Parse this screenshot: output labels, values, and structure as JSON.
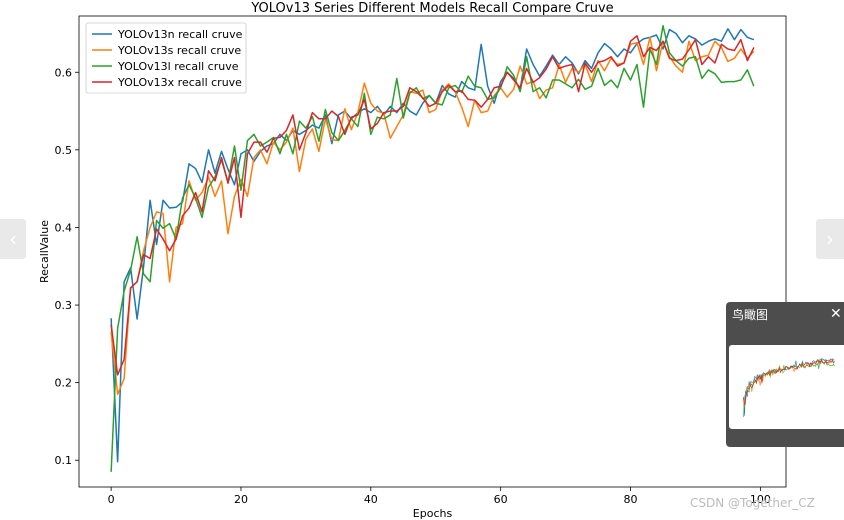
{
  "chart_data": {
    "type": "line",
    "title": "YOLOv13 Series Different Models Recall Compare Cruve",
    "xlabel": "Epochs",
    "ylabel": "RecallValue",
    "xlim": [
      -4.95,
      103.95
    ],
    "ylim": [
      0.0655,
      0.6725
    ],
    "xticks": [
      0,
      20,
      40,
      60,
      80,
      100
    ],
    "yticks": [
      0.1,
      0.2,
      0.3,
      0.4,
      0.5,
      0.6
    ],
    "grid": false,
    "legend": "top-left",
    "series": [
      {
        "name": "YOLOv13n recall cruve",
        "color": "#1f77b4",
        "x_start": 0,
        "values": [
          0.283,
          0.098,
          0.33,
          0.348,
          0.282,
          0.35,
          0.435,
          0.378,
          0.435,
          0.425,
          0.426,
          0.433,
          0.482,
          0.476,
          0.458,
          0.5,
          0.47,
          0.498,
          0.475,
          0.455,
          0.495,
          0.5,
          0.485,
          0.498,
          0.505,
          0.508,
          0.52,
          0.512,
          0.525,
          0.52,
          0.525,
          0.532,
          0.528,
          0.545,
          0.508,
          0.545,
          0.55,
          0.54,
          0.548,
          0.553,
          0.548,
          0.556,
          0.545,
          0.556,
          0.548,
          0.56,
          0.55,
          0.545,
          0.56,
          0.57,
          0.56,
          0.583,
          0.572,
          0.568,
          0.588,
          0.58,
          0.577,
          0.636,
          0.582,
          0.56,
          0.588,
          0.6,
          0.592,
          0.578,
          0.63,
          0.61,
          0.595,
          0.608,
          0.622,
          0.61,
          0.62,
          0.612,
          0.598,
          0.615,
          0.605,
          0.625,
          0.637,
          0.63,
          0.62,
          0.63,
          0.625,
          0.637,
          0.643,
          0.645,
          0.648,
          0.63,
          0.655,
          0.65,
          0.638,
          0.647,
          0.643,
          0.635,
          0.64,
          0.643,
          0.64,
          0.656,
          0.642,
          0.655,
          0.645,
          0.642
        ]
      },
      {
        "name": "YOLOv13s recall cruve",
        "color": "#ff7f0e",
        "x_start": 0,
        "values": [
          0.265,
          0.185,
          0.205,
          0.322,
          0.33,
          0.37,
          0.4,
          0.42,
          0.418,
          0.33,
          0.4,
          0.405,
          0.46,
          0.435,
          0.445,
          0.465,
          0.44,
          0.46,
          0.392,
          0.44,
          0.462,
          0.44,
          0.49,
          0.5,
          0.482,
          0.51,
          0.5,
          0.51,
          0.528,
          0.472,
          0.514,
          0.527,
          0.498,
          0.54,
          0.513,
          0.512,
          0.553,
          0.526,
          0.548,
          0.586,
          0.56,
          0.55,
          0.547,
          0.515,
          0.53,
          0.545,
          0.575,
          0.573,
          0.577,
          0.548,
          0.552,
          0.577,
          0.585,
          0.575,
          0.555,
          0.53,
          0.564,
          0.548,
          0.55,
          0.57,
          0.58,
          0.568,
          0.578,
          0.608,
          0.585,
          0.588,
          0.566,
          0.577,
          0.58,
          0.61,
          0.587,
          0.605,
          0.6,
          0.61,
          0.588,
          0.615,
          0.602,
          0.618,
          0.61,
          0.612,
          0.636,
          0.638,
          0.61,
          0.645,
          0.602,
          0.64,
          0.62,
          0.608,
          0.6,
          0.64,
          0.615,
          0.62,
          0.622,
          0.64,
          0.632,
          0.614,
          0.618,
          0.63,
          0.618,
          0.627
        ]
      },
      {
        "name": "YOLOv13l recall cruve",
        "color": "#2ca02c",
        "x_start": 0,
        "values": [
          0.085,
          0.27,
          0.318,
          0.345,
          0.388,
          0.34,
          0.33,
          0.409,
          0.399,
          0.405,
          0.385,
          0.438,
          0.455,
          0.438,
          0.413,
          0.452,
          0.465,
          0.487,
          0.458,
          0.505,
          0.448,
          0.512,
          0.52,
          0.505,
          0.51,
          0.516,
          0.495,
          0.52,
          0.495,
          0.537,
          0.528,
          0.543,
          0.511,
          0.552,
          0.522,
          0.512,
          0.525,
          0.54,
          0.53,
          0.573,
          0.52,
          0.542,
          0.54,
          0.545,
          0.592,
          0.541,
          0.573,
          0.58,
          0.566,
          0.57,
          0.56,
          0.558,
          0.58,
          0.583,
          0.574,
          0.595,
          0.582,
          0.58,
          0.565,
          0.567,
          0.58,
          0.607,
          0.596,
          0.575,
          0.62,
          0.575,
          0.58,
          0.567,
          0.59,
          0.59,
          0.585,
          0.58,
          0.591,
          0.578,
          0.582,
          0.605,
          0.583,
          0.59,
          0.58,
          0.605,
          0.59,
          0.61,
          0.555,
          0.63,
          0.61,
          0.66,
          0.625,
          0.615,
          0.608,
          0.618,
          0.62,
          0.592,
          0.603,
          0.598,
          0.587,
          0.588,
          0.588,
          0.59,
          0.603,
          0.582
        ]
      },
      {
        "name": "YOLOv13x recall cruve",
        "color": "#d62728",
        "x_start": 0,
        "values": [
          0.275,
          0.21,
          0.23,
          0.322,
          0.33,
          0.365,
          0.36,
          0.398,
          0.385,
          0.37,
          0.385,
          0.415,
          0.425,
          0.445,
          0.42,
          0.473,
          0.46,
          0.49,
          0.457,
          0.49,
          0.413,
          0.495,
          0.51,
          0.51,
          0.497,
          0.515,
          0.516,
          0.525,
          0.545,
          0.5,
          0.522,
          0.548,
          0.54,
          0.54,
          0.55,
          0.543,
          0.52,
          0.542,
          0.545,
          0.565,
          0.527,
          0.534,
          0.548,
          0.55,
          0.55,
          0.556,
          0.58,
          0.575,
          0.567,
          0.556,
          0.56,
          0.575,
          0.583,
          0.575,
          0.576,
          0.565,
          0.564,
          0.555,
          0.565,
          0.58,
          0.582,
          0.6,
          0.59,
          0.58,
          0.605,
          0.587,
          0.593,
          0.604,
          0.62,
          0.605,
          0.608,
          0.61,
          0.575,
          0.612,
          0.6,
          0.613,
          0.615,
          0.62,
          0.608,
          0.612,
          0.64,
          0.647,
          0.62,
          0.632,
          0.628,
          0.64,
          0.618,
          0.615,
          0.617,
          0.629,
          0.642,
          0.61,
          0.62,
          0.612,
          0.636,
          0.63,
          0.628,
          0.642,
          0.615,
          0.632
        ]
      }
    ]
  },
  "ui": {
    "prev_arrow": "‹",
    "next_arrow": "›",
    "minimap_title": "鸟瞰图",
    "minimap_close": "✕",
    "watermark": "CSDN @Together_CZ"
  },
  "colors": {
    "nav_button_bg": "#e9e9e9",
    "minimap_bg": "#4d4d4d",
    "axis": "#000000"
  },
  "icons": {
    "prev": "chevron-left-icon",
    "next": "chevron-right-icon",
    "close": "close-icon"
  }
}
